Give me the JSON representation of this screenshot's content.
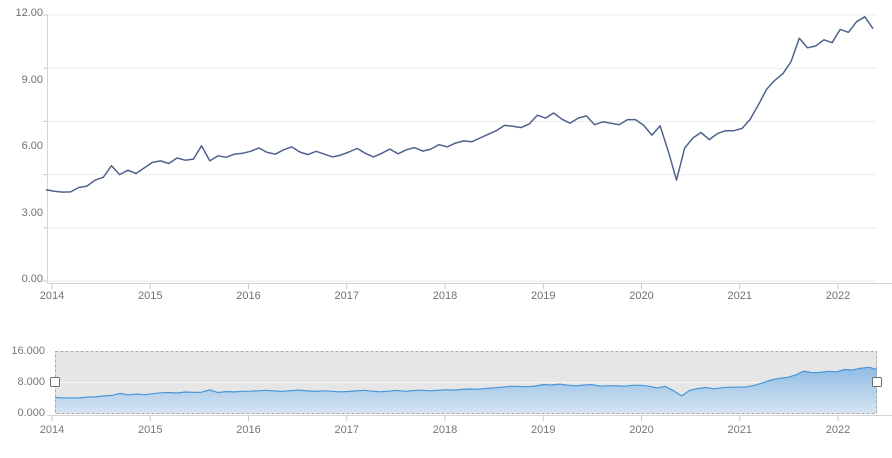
{
  "chart_data": [
    {
      "id": "main-price-series",
      "type": "line",
      "title": "",
      "xlabel": "",
      "ylabel": "",
      "x_start": "2014-01",
      "x_interval": "month",
      "x_axis_labels": [
        "2014",
        "2015",
        "2016",
        "2017",
        "2018",
        "2019",
        "2020",
        "2021",
        "2022"
      ],
      "y_axis_labels": [
        "12.00",
        "9.00",
        "6.00",
        "3.00",
        "0.00"
      ],
      "y_axis_label_values": [
        12,
        9,
        6,
        3,
        0
      ],
      "ylim": [
        0,
        12
      ],
      "gridline_values": [
        0,
        2.4,
        4.8,
        7.2,
        9.6,
        12
      ],
      "grid": "on",
      "legend": "none",
      "line_color": "#4f628e",
      "values": [
        4.12,
        4.05,
        4.01,
        4.02,
        4.22,
        4.28,
        4.55,
        4.68,
        5.2,
        4.8,
        5.0,
        4.85,
        5.1,
        5.35,
        5.42,
        5.3,
        5.55,
        5.45,
        5.5,
        6.1,
        5.42,
        5.65,
        5.58,
        5.72,
        5.76,
        5.85,
        6.0,
        5.8,
        5.72,
        5.92,
        6.05,
        5.82,
        5.7,
        5.85,
        5.72,
        5.6,
        5.68,
        5.82,
        5.98,
        5.76,
        5.6,
        5.76,
        5.95,
        5.74,
        5.92,
        6.02,
        5.86,
        5.95,
        6.15,
        6.05,
        6.22,
        6.32,
        6.28,
        6.45,
        6.62,
        6.78,
        7.02,
        6.98,
        6.92,
        7.08,
        7.48,
        7.35,
        7.58,
        7.3,
        7.12,
        7.35,
        7.45,
        7.05,
        7.18,
        7.12,
        7.05,
        7.28,
        7.28,
        7.02,
        6.58,
        7.0,
        5.85,
        4.55,
        6.0,
        6.45,
        6.7,
        6.38,
        6.65,
        6.78,
        6.78,
        6.88,
        7.3,
        7.95,
        8.65,
        9.05,
        9.35,
        9.9,
        10.95,
        10.52,
        10.6,
        10.88,
        10.75,
        11.35,
        11.22,
        11.7,
        11.92,
        11.38
      ]
    },
    {
      "id": "navigator-series",
      "type": "area",
      "series_ref": "main-price-series",
      "x_axis_labels": [
        "2014",
        "2015",
        "2016",
        "2017",
        "2018",
        "2019",
        "2020",
        "2021",
        "2022"
      ],
      "y_axis_labels": [
        "16.000",
        "8.000",
        "0.000"
      ],
      "y_axis_label_values": [
        16,
        8,
        0
      ],
      "ylim": [
        0,
        16
      ],
      "gridline_values": [
        8
      ],
      "legend": "none",
      "line_color": "#4a96d8",
      "fill_top_color": "#85b7e4",
      "fill_bottom_color": "#d3e4f4",
      "background_color": "#e6e6e6",
      "border_style": "dashed",
      "border_color": "#a9a9a9",
      "handle_fill": "#ffffff",
      "handle_border": "#6f6f6f",
      "selected_range": "full"
    }
  ],
  "colors": {
    "main_gridline": "#ececec",
    "axis_line": "#d5d5d5",
    "tick": "#c8c8c8",
    "axis_label_text": "#6d7175",
    "nav_gridline": "#f7f7f7"
  }
}
